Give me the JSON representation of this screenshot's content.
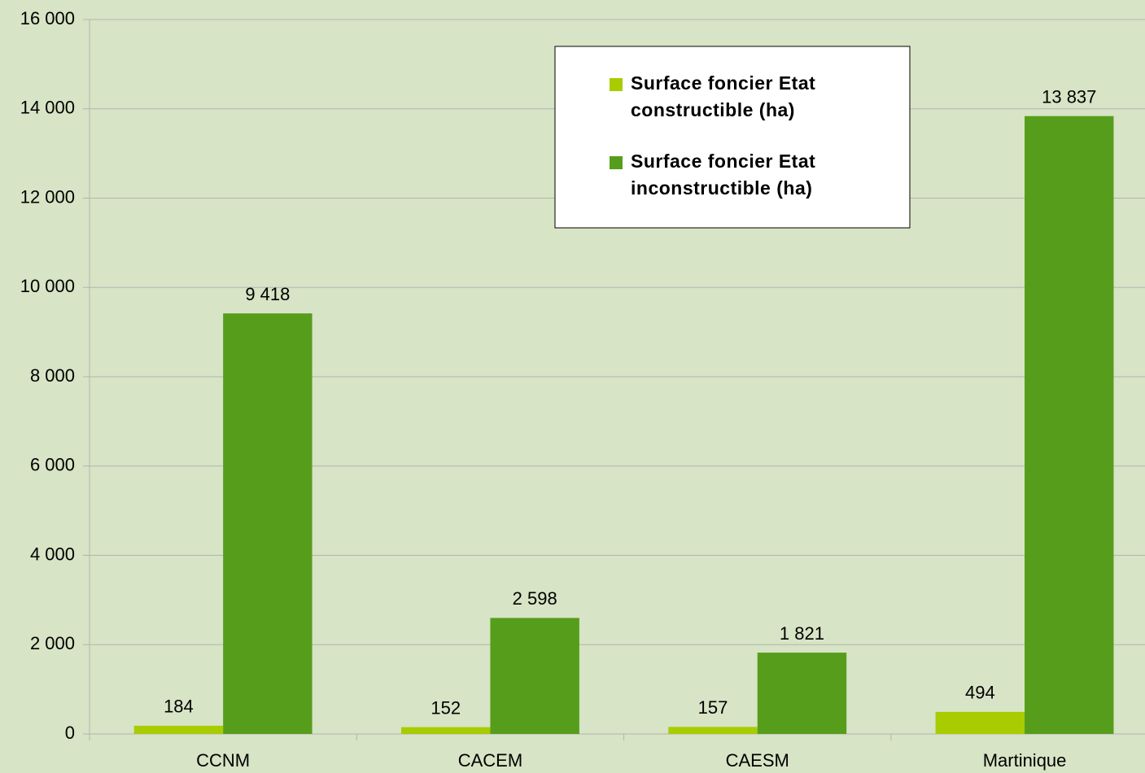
{
  "chart_data": {
    "type": "bar",
    "categories": [
      "CCNM",
      "CACEM",
      "CAESM",
      "Martinique"
    ],
    "series": [
      {
        "name": "Surface foncier Etat constructible (ha)",
        "color": "#a8cc00",
        "values": [
          184,
          152,
          157,
          494
        ],
        "value_labels": [
          "184",
          "152",
          "157",
          "494"
        ]
      },
      {
        "name": "Surface foncier Etat inconstructible (ha)",
        "color": "#579d1c",
        "values": [
          9418,
          2598,
          1821,
          13837
        ],
        "value_labels": [
          "9 418",
          "2 598",
          "1 821",
          "13 837"
        ]
      }
    ],
    "ylim": [
      0,
      16000
    ],
    "yticks": [
      {
        "value": 0,
        "label": "0"
      },
      {
        "value": 2000,
        "label": "2 000"
      },
      {
        "value": 4000,
        "label": "4 000"
      },
      {
        "value": 6000,
        "label": "6 000"
      },
      {
        "value": 8000,
        "label": "8 000"
      },
      {
        "value": 10000,
        "label": "10 000"
      },
      {
        "value": 12000,
        "label": "12 000"
      },
      {
        "value": 14000,
        "label": "14 000"
      },
      {
        "value": 16000,
        "label": "16 000"
      }
    ],
    "grid": true
  }
}
